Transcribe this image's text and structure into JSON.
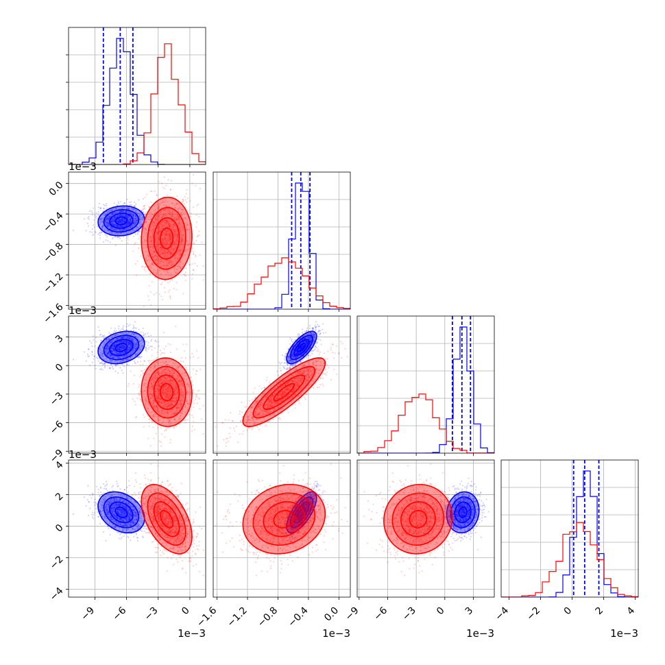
{
  "chart_data": {
    "type": "corner",
    "series": [
      {
        "name": "",
        "color": "#0000ff",
        "means": [
          -0.0065,
          -0.00049,
          0.0019,
          0.00088
        ],
        "sds": [
          0.0011,
          9.8e-05,
          0.00085,
          0.00065
        ],
        "quantiles": [
          [
            -0.0082,
            -0.0066,
            -0.0054
          ],
          [
            -0.00062,
            -0.0005,
            -0.00038
          ],
          [
            0.0008,
            0.0018,
            0.0027
          ],
          [
            0.0001,
            0.0008,
            0.0017
          ]
        ],
        "correlations": [
          [
            1,
            0.1,
            0.25,
            -0.3
          ],
          [
            0.1,
            1,
            0.7,
            0.7
          ],
          [
            0.25,
            0.7,
            1,
            0.1
          ],
          [
            -0.3,
            0.7,
            0.1,
            1
          ]
        ]
      },
      {
        "name": "",
        "color": "#ff0000",
        "means": [
          -0.0022,
          -0.00072,
          -0.0028,
          0.00045
        ],
        "sds": [
          0.0012,
          0.00027,
          0.0018,
          0.0011
        ],
        "quantiles": [
          [],
          [],
          [],
          []
        ],
        "correlations": [
          [
            1,
            0.05,
            -0.05,
            -0.5
          ],
          [
            0.05,
            1,
            0.85,
            0.15
          ],
          [
            -0.05,
            0.85,
            1,
            0.05
          ],
          [
            -0.5,
            0.15,
            0.05,
            1
          ]
        ]
      }
    ],
    "parameters": [
      {
        "range": [
          -0.0115,
          0.0015
        ],
        "ticks": [
          -0.009,
          -0.006,
          -0.003,
          0
        ],
        "tick_labels": [
          "−9",
          "−6",
          "−3",
          "0"
        ],
        "offset_label": "1e−3"
      },
      {
        "range": [
          -0.00165,
          0.00015
        ],
        "ticks": [
          -0.0016,
          -0.0012,
          -0.0008,
          -0.0004,
          0
        ],
        "tick_labels": [
          "−1.6",
          "−1.2",
          "−0.8",
          "−0.4",
          "0.0"
        ],
        "offset_label": "1e−3"
      },
      {
        "range": [
          -0.0092,
          0.0052
        ],
        "ticks": [
          -0.009,
          -0.006,
          -0.003,
          0,
          0.003
        ],
        "tick_labels": [
          "−9",
          "−6",
          "−3",
          "0",
          "3"
        ],
        "offset_label": "1e−3"
      },
      {
        "range": [
          -0.0045,
          0.0042
        ],
        "ticks": [
          -0.004,
          -0.002,
          0,
          0.002,
          0.004
        ],
        "tick_labels": [
          "−4",
          "−2",
          "0",
          "2",
          "4"
        ],
        "offset_label": "1e−3"
      }
    ],
    "histogram_bins": 20,
    "show_datapoints": true,
    "grid": true,
    "legend": "none"
  }
}
